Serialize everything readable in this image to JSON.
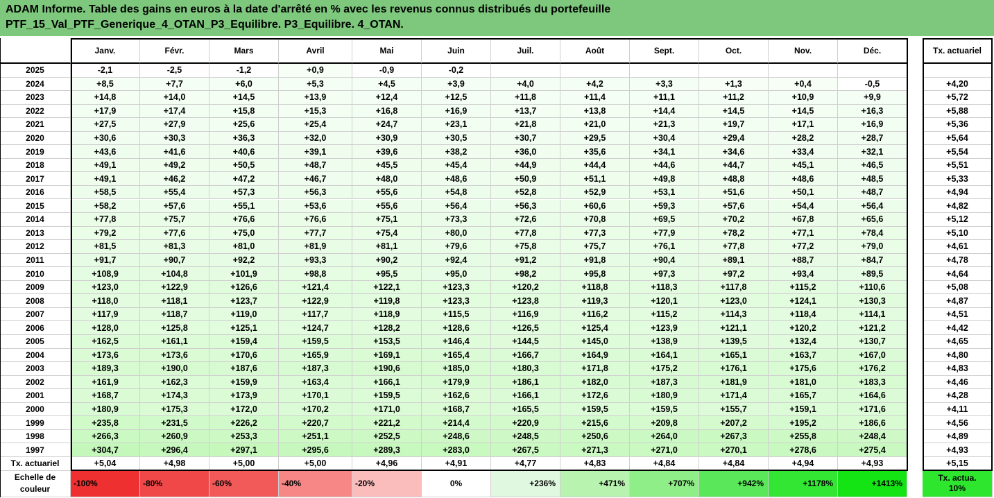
{
  "title_line1": "ADAM Informe. Table des gains en euros à la date d'arrêté en % avec les revenus connus distribués du portefeuille",
  "title_line2": "PTF_15_Val_PTF_Generique_4_OTAN_P3_Equilibre. P3_Equilibre. 4_OTAN.",
  "months": [
    "Janv.",
    "Févr.",
    "Mars",
    "Avril",
    "Mai",
    "Juin",
    "Juil.",
    "Août",
    "Sept.",
    "Oct.",
    "Nov.",
    "Déc."
  ],
  "rate_header": "Tx. actuariel",
  "rows": [
    {
      "year": "2025",
      "values": [
        "-2,1",
        "-2,5",
        "-1,2",
        "+0,9",
        "-0,9",
        "-0,2",
        "",
        "",
        "",
        "",
        "",
        ""
      ],
      "rate": ""
    },
    {
      "year": "2024",
      "values": [
        "+8,5",
        "+7,7",
        "+6,0",
        "+5,3",
        "+4,5",
        "+3,9",
        "+4,0",
        "+4,2",
        "+3,3",
        "+1,3",
        "+0,4",
        "-0,5"
      ],
      "rate": "+4,20"
    },
    {
      "year": "2023",
      "values": [
        "+14,8",
        "+14,0",
        "+14,5",
        "+13,9",
        "+12,4",
        "+12,5",
        "+11,8",
        "+11,4",
        "+11,1",
        "+11,2",
        "+10,9",
        "+9,9"
      ],
      "rate": "+5,72"
    },
    {
      "year": "2022",
      "values": [
        "+17,9",
        "+17,4",
        "+15,8",
        "+15,3",
        "+16,8",
        "+16,9",
        "+13,7",
        "+13,8",
        "+14,4",
        "+14,5",
        "+14,5",
        "+16,3"
      ],
      "rate": "+5,88"
    },
    {
      "year": "2021",
      "values": [
        "+27,5",
        "+27,9",
        "+25,6",
        "+25,4",
        "+24,7",
        "+23,1",
        "+21,8",
        "+21,0",
        "+21,3",
        "+19,7",
        "+17,1",
        "+16,9"
      ],
      "rate": "+5,36"
    },
    {
      "year": "2020",
      "values": [
        "+30,6",
        "+30,3",
        "+36,3",
        "+32,0",
        "+30,9",
        "+30,5",
        "+30,7",
        "+29,5",
        "+30,4",
        "+29,4",
        "+28,2",
        "+28,7"
      ],
      "rate": "+5,64"
    },
    {
      "year": "2019",
      "values": [
        "+43,6",
        "+41,6",
        "+40,6",
        "+39,1",
        "+39,6",
        "+38,2",
        "+36,0",
        "+35,6",
        "+34,1",
        "+34,6",
        "+33,4",
        "+32,1"
      ],
      "rate": "+5,54"
    },
    {
      "year": "2018",
      "values": [
        "+49,1",
        "+49,2",
        "+50,5",
        "+48,7",
        "+45,5",
        "+45,4",
        "+44,9",
        "+44,4",
        "+44,6",
        "+44,7",
        "+45,1",
        "+46,5"
      ],
      "rate": "+5,51"
    },
    {
      "year": "2017",
      "values": [
        "+49,1",
        "+46,2",
        "+47,2",
        "+46,7",
        "+48,0",
        "+48,6",
        "+50,9",
        "+51,1",
        "+49,8",
        "+48,8",
        "+48,6",
        "+48,5"
      ],
      "rate": "+5,33"
    },
    {
      "year": "2016",
      "values": [
        "+58,5",
        "+55,4",
        "+57,3",
        "+56,3",
        "+55,6",
        "+54,8",
        "+52,8",
        "+52,9",
        "+53,1",
        "+51,6",
        "+50,1",
        "+48,7"
      ],
      "rate": "+4,94"
    },
    {
      "year": "2015",
      "values": [
        "+58,2",
        "+57,6",
        "+55,1",
        "+53,6",
        "+55,6",
        "+56,4",
        "+56,3",
        "+60,6",
        "+59,3",
        "+57,6",
        "+54,4",
        "+56,4"
      ],
      "rate": "+4,82"
    },
    {
      "year": "2014",
      "values": [
        "+77,8",
        "+75,7",
        "+76,6",
        "+76,6",
        "+75,1",
        "+73,3",
        "+72,6",
        "+70,8",
        "+69,5",
        "+70,2",
        "+67,8",
        "+65,6"
      ],
      "rate": "+5,12"
    },
    {
      "year": "2013",
      "values": [
        "+79,2",
        "+77,6",
        "+75,0",
        "+77,7",
        "+75,4",
        "+80,0",
        "+77,8",
        "+77,3",
        "+77,9",
        "+78,2",
        "+77,1",
        "+78,4"
      ],
      "rate": "+5,10"
    },
    {
      "year": "2012",
      "values": [
        "+81,5",
        "+81,3",
        "+81,0",
        "+81,9",
        "+81,1",
        "+79,6",
        "+75,8",
        "+75,7",
        "+76,1",
        "+77,8",
        "+77,2",
        "+79,0"
      ],
      "rate": "+4,61"
    },
    {
      "year": "2011",
      "values": [
        "+91,7",
        "+90,7",
        "+92,2",
        "+93,3",
        "+90,2",
        "+92,4",
        "+91,2",
        "+91,8",
        "+90,4",
        "+89,1",
        "+88,7",
        "+84,7"
      ],
      "rate": "+4,78"
    },
    {
      "year": "2010",
      "values": [
        "+108,9",
        "+104,8",
        "+101,9",
        "+98,8",
        "+95,5",
        "+95,0",
        "+98,2",
        "+95,8",
        "+97,3",
        "+97,2",
        "+93,4",
        "+89,5"
      ],
      "rate": "+4,64"
    },
    {
      "year": "2009",
      "values": [
        "+123,0",
        "+122,9",
        "+126,6",
        "+121,4",
        "+122,1",
        "+123,3",
        "+120,2",
        "+118,8",
        "+118,3",
        "+117,8",
        "+115,2",
        "+110,6"
      ],
      "rate": "+5,08"
    },
    {
      "year": "2008",
      "values": [
        "+118,0",
        "+118,1",
        "+123,7",
        "+122,9",
        "+119,8",
        "+123,3",
        "+123,8",
        "+119,3",
        "+120,1",
        "+123,0",
        "+124,1",
        "+130,3"
      ],
      "rate": "+4,87"
    },
    {
      "year": "2007",
      "values": [
        "+117,9",
        "+118,7",
        "+119,0",
        "+117,7",
        "+118,9",
        "+115,5",
        "+116,9",
        "+116,2",
        "+115,2",
        "+114,3",
        "+118,4",
        "+114,1"
      ],
      "rate": "+4,51"
    },
    {
      "year": "2006",
      "values": [
        "+128,0",
        "+125,8",
        "+125,1",
        "+124,7",
        "+128,2",
        "+128,6",
        "+126,5",
        "+125,4",
        "+123,9",
        "+121,1",
        "+120,2",
        "+121,2"
      ],
      "rate": "+4,42"
    },
    {
      "year": "2005",
      "values": [
        "+162,5",
        "+161,1",
        "+159,4",
        "+159,5",
        "+153,5",
        "+146,4",
        "+144,5",
        "+145,0",
        "+138,9",
        "+139,5",
        "+132,4",
        "+130,7"
      ],
      "rate": "+4,65"
    },
    {
      "year": "2004",
      "values": [
        "+173,6",
        "+173,6",
        "+170,6",
        "+165,9",
        "+169,1",
        "+165,4",
        "+166,7",
        "+164,9",
        "+164,1",
        "+165,1",
        "+163,7",
        "+167,0"
      ],
      "rate": "+4,80"
    },
    {
      "year": "2003",
      "values": [
        "+189,3",
        "+190,0",
        "+187,6",
        "+187,3",
        "+190,6",
        "+185,0",
        "+180,3",
        "+171,8",
        "+175,2",
        "+176,1",
        "+175,6",
        "+176,2"
      ],
      "rate": "+4,83"
    },
    {
      "year": "2002",
      "values": [
        "+161,9",
        "+162,3",
        "+159,9",
        "+163,4",
        "+166,1",
        "+179,9",
        "+186,1",
        "+182,0",
        "+187,3",
        "+181,9",
        "+181,0",
        "+183,3"
      ],
      "rate": "+4,46"
    },
    {
      "year": "2001",
      "values": [
        "+168,7",
        "+174,3",
        "+173,9",
        "+170,1",
        "+159,5",
        "+162,6",
        "+166,1",
        "+172,6",
        "+180,9",
        "+171,4",
        "+165,7",
        "+164,6"
      ],
      "rate": "+4,28"
    },
    {
      "year": "2000",
      "values": [
        "+180,9",
        "+175,3",
        "+172,0",
        "+170,2",
        "+171,0",
        "+168,7",
        "+165,5",
        "+159,5",
        "+159,5",
        "+155,7",
        "+159,1",
        "+171,6"
      ],
      "rate": "+4,11"
    },
    {
      "year": "1999",
      "values": [
        "+235,8",
        "+231,5",
        "+226,2",
        "+220,7",
        "+221,2",
        "+214,4",
        "+220,9",
        "+215,6",
        "+209,8",
        "+207,2",
        "+195,2",
        "+186,6"
      ],
      "rate": "+4,56"
    },
    {
      "year": "1998",
      "values": [
        "+266,3",
        "+260,9",
        "+253,3",
        "+251,1",
        "+252,5",
        "+248,6",
        "+248,5",
        "+250,6",
        "+264,0",
        "+267,3",
        "+255,8",
        "+248,4"
      ],
      "rate": "+4,89"
    },
    {
      "year": "1997",
      "values": [
        "+304,7",
        "+296,4",
        "+297,1",
        "+295,6",
        "+289,3",
        "+283,0",
        "+267,5",
        "+271,3",
        "+271,0",
        "+270,1",
        "+278,6",
        "+275,4"
      ],
      "rate": "+4,93"
    }
  ],
  "rate_row": {
    "label": "Tx. actuariel",
    "values": [
      "+5,04",
      "+4,98",
      "+5,00",
      "+5,00",
      "+4,96",
      "+4,91",
      "+4,77",
      "+4,83",
      "+4,84",
      "+4,84",
      "+4,94",
      "+4,93"
    ],
    "rate": "+5,15"
  },
  "scale": {
    "label": "Echelle de couleur",
    "items": [
      "-100%",
      "-80%",
      "-60%",
      "-40%",
      "-20%",
      "0%",
      "+236%",
      "+471%",
      "+707%",
      "+942%",
      "+1178%",
      "+1413%"
    ],
    "colors": [
      "#ee3030",
      "#f04848",
      "#f25a5a",
      "#f78787",
      "#fbbcbc",
      "#ffffff",
      "#e0f8e0",
      "#b8f4b0",
      "#90ee88",
      "#5ae85a",
      "#33e633",
      "#14e314"
    ],
    "rate_label": "Tx. actua. 10%",
    "rate_color": "#2ee62e"
  },
  "colors": {
    "header_bg": "#7dc87d"
  }
}
